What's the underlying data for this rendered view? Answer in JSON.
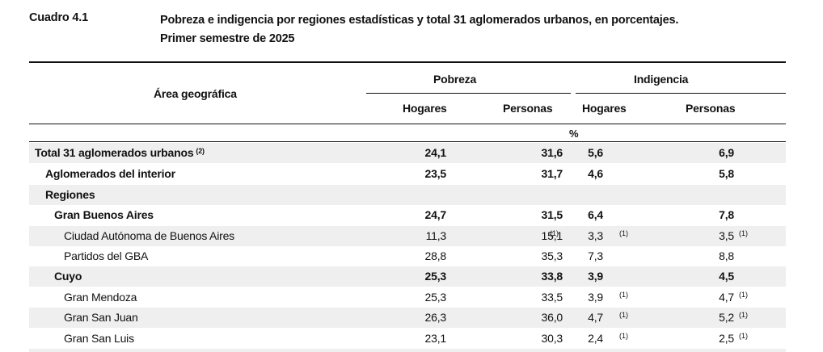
{
  "header": {
    "number": "Cuadro 4.1",
    "title_line1": "Pobreza e indigencia por regiones estadísticas y total 31 aglomerados urbanos, en porcentajes.",
    "title_line2": "Primer semestre de 2025"
  },
  "table": {
    "area_header": "Área geográfica",
    "group_pobreza": "Pobreza",
    "group_indigencia": "Indigencia",
    "col_hogares": "Hogares",
    "col_personas": "Personas",
    "unit": "%",
    "rows": [
      {
        "label": "Total 31 aglomerados urbanos",
        "note": "(2)",
        "v": [
          "24,1",
          "31,6",
          "5,6",
          "6,9"
        ],
        "n": [
          "",
          "",
          ""
        ]
      },
      {
        "label": "Aglomerados del interior",
        "v": [
          "23,5",
          "31,7",
          "4,6",
          "5,8"
        ],
        "n": [
          "",
          "",
          ""
        ]
      },
      {
        "label": "Regiones",
        "v": [
          "",
          "",
          "",
          ""
        ],
        "n": [
          "",
          "",
          ""
        ]
      },
      {
        "label": "Gran Buenos Aires",
        "v": [
          "24,7",
          "31,5",
          "6,4",
          "7,8"
        ],
        "n": [
          "",
          "",
          ""
        ]
      },
      {
        "label": "Ciudad Autónoma de Buenos Aires",
        "v": [
          "11,3",
          "15,1",
          "3,3",
          "3,5"
        ],
        "n": [
          "(1)",
          "(1)",
          "(1)"
        ]
      },
      {
        "label": "Partidos del GBA",
        "v": [
          "28,8",
          "35,3",
          "7,3",
          "8,8"
        ],
        "n": [
          "",
          "",
          ""
        ]
      },
      {
        "label": "Cuyo",
        "v": [
          "25,3",
          "33,8",
          "3,9",
          "4,5"
        ],
        "n": [
          "",
          "",
          ""
        ]
      },
      {
        "label": "Gran Mendoza",
        "v": [
          "25,3",
          "33,5",
          "3,9",
          "4,7"
        ],
        "n": [
          "",
          "(1)",
          "(1)"
        ]
      },
      {
        "label": "Gran San Juan",
        "v": [
          "26,3",
          "36,0",
          "4,7",
          "5,2"
        ],
        "n": [
          "",
          "(1)",
          "(1)"
        ]
      },
      {
        "label": "Gran San Luis",
        "v": [
          "23,1",
          "30,3",
          "2,4",
          "2,5"
        ],
        "n": [
          "",
          "(1)",
          "(1)"
        ]
      }
    ]
  }
}
